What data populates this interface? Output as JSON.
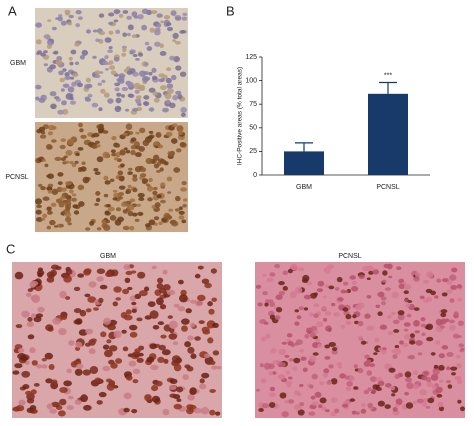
{
  "panels": {
    "a": {
      "label": "A",
      "rows": [
        "GBM",
        "PCNSL"
      ]
    },
    "b": {
      "label": "B"
    },
    "c": {
      "label": "C",
      "images": [
        "GBM",
        "PCNSL"
      ]
    }
  },
  "chart_data": {
    "type": "bar",
    "y_label": "IHC-Positive areas (% total areas)",
    "categories": [
      "GBM",
      "PCNSL"
    ],
    "values": [
      25,
      86
    ],
    "errors": [
      9,
      12
    ],
    "color": "#173a6a",
    "annotation": "***",
    "ylim": [
      0,
      125
    ],
    "yticks": [
      0,
      25,
      50,
      75,
      100,
      125
    ]
  }
}
